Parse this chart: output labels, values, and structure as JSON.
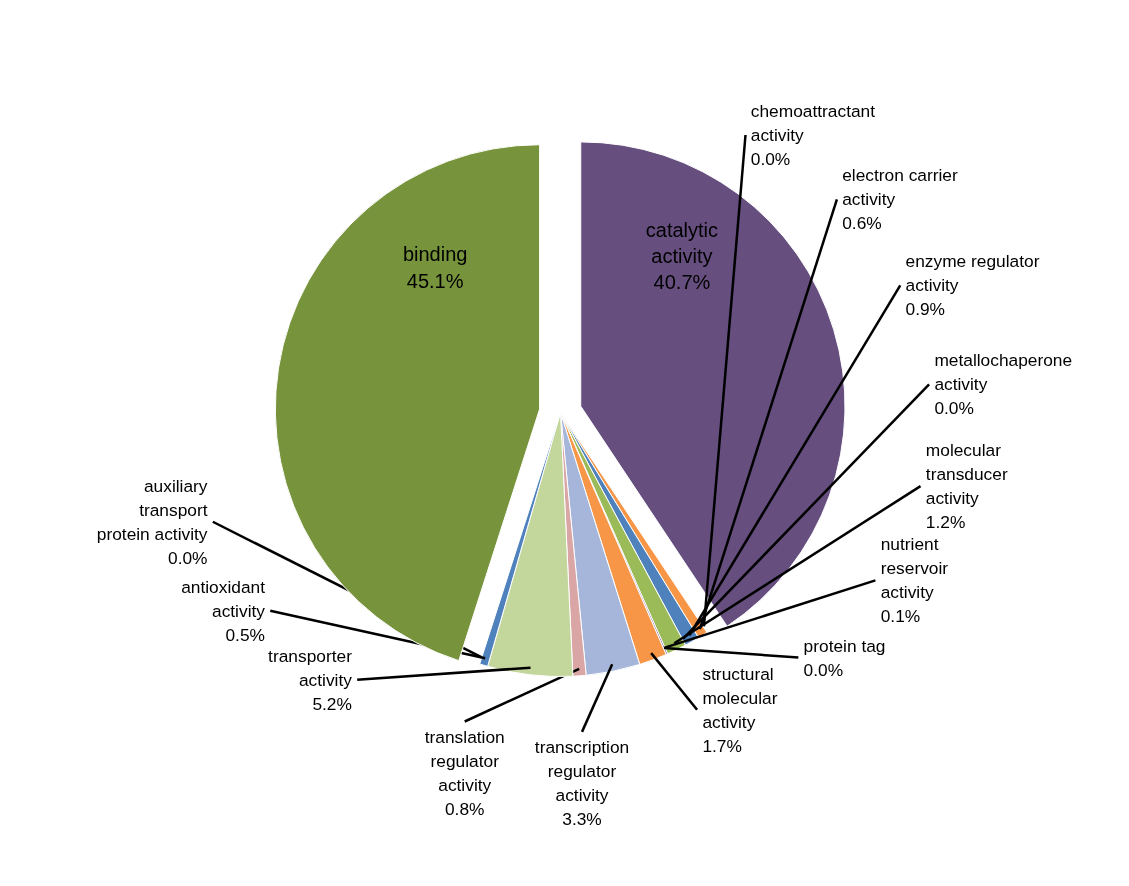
{
  "chart_data": {
    "type": "pie",
    "value_labels": [
      "40.7%",
      "0.0%",
      "0.6%",
      "0.9%",
      "0.0%",
      "1.2%",
      "0.1%",
      "0.0%",
      "1.7%",
      "3.3%",
      "0.8%",
      "5.2%",
      "0.5%",
      "0.0%",
      "45.1%"
    ],
    "categories": [
      "catalytic activity",
      "chemoattractant activity",
      "electron carrier activity",
      "enzyme regulator activity",
      "metallochaperone activity",
      "molecular transducer activity",
      "nutrient reservoir activity",
      "protein tag",
      "structural molecular activity",
      "transcription regulator activity",
      "translation regulator activity",
      "transporter activity",
      "antioxidant activity",
      "auxiliary transport protein activity",
      "binding"
    ],
    "values": [
      40.7,
      0.0,
      0.6,
      0.9,
      0.0,
      1.2,
      0.1,
      0.0,
      1.7,
      3.3,
      0.8,
      5.2,
      0.5,
      0.0,
      45.1
    ],
    "colors": [
      "#664f7f",
      "#f79646",
      "#f79646",
      "#4f81bd",
      "#9bbb59",
      "#9bbb59",
      "#8064a2",
      "#4bacc6",
      "#f79646",
      "#a5b6da",
      "#d9a5a5",
      "#c3d69b",
      "#4f81bd",
      "#4f81bd",
      "#77933c"
    ]
  }
}
